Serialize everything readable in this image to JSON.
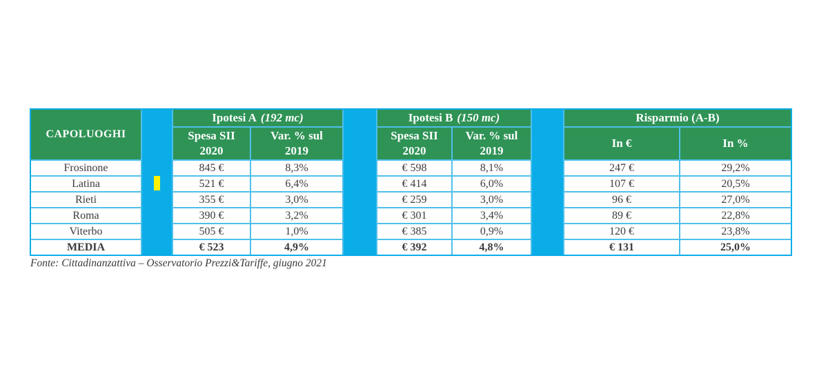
{
  "colors": {
    "header_green": "#2F9356",
    "spacer_cyan": "#0BADE8",
    "gridline_cyan": "#4FBFEA",
    "cursor_yellow": "#FFF200",
    "text": "#3C3C3C"
  },
  "header": {
    "corner": "CAPOLUOGHI",
    "groups": [
      {
        "name": "Ipotesi A",
        "unit": "(192 mc)",
        "sub": [
          {
            "line1": "Spesa SII",
            "line2": "2020"
          },
          {
            "line1": "Var. % sul",
            "line2": "2019"
          }
        ]
      },
      {
        "name": "Ipotesi B",
        "unit": "(150 mc)",
        "sub": [
          {
            "line1": "Spesa SII",
            "line2": "2020"
          },
          {
            "line1": "Var. % sul",
            "line2": "2019"
          }
        ]
      },
      {
        "name": "Risparmio (A-B)",
        "unit": "",
        "sub": [
          {
            "line1": "In €",
            "line2": ""
          },
          {
            "line1": "In %",
            "line2": ""
          }
        ]
      }
    ]
  },
  "chart_data": {
    "type": "table",
    "title": "",
    "column_groups": [
      "",
      "Ipotesi A (192 mc)",
      "Ipotesi A (192 mc)",
      "Ipotesi B (150 mc)",
      "Ipotesi B (150 mc)",
      "Risparmio (A-B)",
      "Risparmio (A-B)"
    ],
    "columns": [
      "CAPOLUOGHI",
      "Spesa SII 2020",
      "Var. % sul 2019",
      "Spesa SII 2020",
      "Var. % sul 2019",
      "In €",
      "In %"
    ],
    "rows": [
      [
        "Frosinone",
        "845 €",
        "8,3%",
        "€ 598",
        "8,1%",
        "247 €",
        "29,2%"
      ],
      [
        "Latina",
        "521 €",
        "6,4%",
        "€ 414",
        "6,0%",
        "107 €",
        "20,5%"
      ],
      [
        "Rieti",
        "355 €",
        "3,0%",
        "€ 259",
        "3,0%",
        "96 €",
        "27,0%"
      ],
      [
        "Roma",
        "390 €",
        "3,2%",
        "€ 301",
        "3,4%",
        "89 €",
        "22,8%"
      ],
      [
        "Viterbo",
        "505 €",
        "1,0%",
        "€ 385",
        "0,9%",
        "120 €",
        "23,8%"
      ],
      [
        "MEDIA",
        "€ 523",
        "4,9%",
        "€ 392",
        "4,8%",
        "€ 131",
        "25,0%"
      ]
    ],
    "source": "Fonte: Cittadinanzattiva – Osservatorio Prezzi&Tariffe, giugno 2021"
  }
}
